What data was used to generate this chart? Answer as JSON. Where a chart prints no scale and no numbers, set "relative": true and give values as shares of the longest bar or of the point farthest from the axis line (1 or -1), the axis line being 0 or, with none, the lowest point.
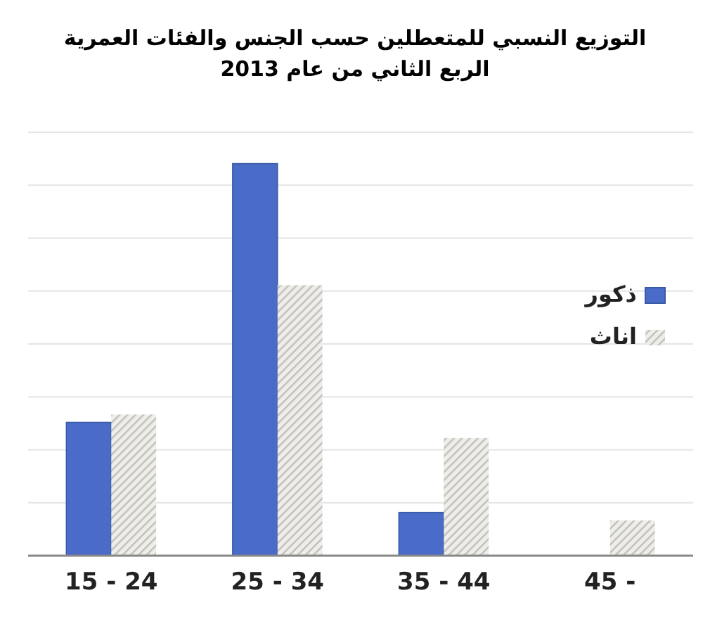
{
  "chart_data": {
    "type": "bar",
    "title": "التوزيع النسبي للمتعطلين حسب الجنس والفئات العمرية",
    "subtitle": "الربع الثاني من عام 2013",
    "relative": true,
    "grid": "y",
    "legend": "right",
    "categories": [
      "15 - 24",
      "25 - 34",
      "35 - 44",
      "45 -"
    ],
    "series": [
      {
        "name": "ذكور",
        "color": "#4a6cc8",
        "values": [
          0.34,
          1,
          0.11,
          0
        ]
      },
      {
        "name": "اناث",
        "color": "#c4c0ba",
        "values": [
          0.36,
          0.69,
          0.3,
          0.09
        ]
      }
    ]
  }
}
